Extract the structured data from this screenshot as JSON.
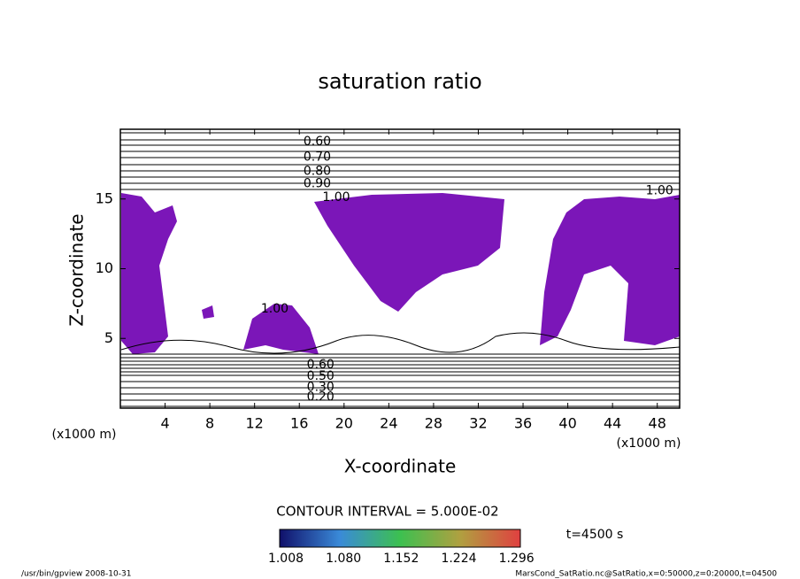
{
  "chart_data": {
    "type": "contour",
    "title": "saturation ratio",
    "xlabel": "X-coordinate",
    "ylabel": "Z-coordinate",
    "xunit": "(x1000 m)",
    "yunit": "(x1000 m)",
    "xlim": [
      0,
      50
    ],
    "ylim": [
      0,
      20
    ],
    "xticks": [
      4,
      8,
      12,
      16,
      20,
      24,
      28,
      32,
      36,
      40,
      44,
      48
    ],
    "yticks": [
      5,
      10,
      15
    ],
    "color": "#7b16b8",
    "contour_labels": [
      {
        "text": "0.60",
        "x": 17.6,
        "y": 19.1
      },
      {
        "text": "0.70",
        "x": 17.6,
        "y": 18.0
      },
      {
        "text": "0.80",
        "x": 17.6,
        "y": 17.0
      },
      {
        "text": "0.90",
        "x": 17.6,
        "y": 16.1
      },
      {
        "text": "1.00",
        "x": 19.3,
        "y": 15.1
      },
      {
        "text": "1.00",
        "x": 48.2,
        "y": 15.6
      },
      {
        "text": "1.00",
        "x": 13.8,
        "y": 7.1
      },
      {
        "text": "0.60",
        "x": 17.9,
        "y": 3.1
      },
      {
        "text": "0.50",
        "x": 17.9,
        "y": 2.3
      },
      {
        "text": "0.30",
        "x": 17.9,
        "y": 1.5
      },
      {
        "text": "0.20",
        "x": 17.9,
        "y": 0.8
      }
    ],
    "contour_interval": "CONTOUR INTERVAL = 5.000E-02",
    "colorbar_labels": [
      "1.008",
      "1.080",
      "1.152",
      "1.224",
      "1.296"
    ],
    "time": "t=4500 s",
    "footer_left": "/usr/bin/gpview   2008-10-31",
    "footer_right": "MarsCond_SatRatio.nc@SatRatio,x=0:50000,z=0:20000,t=04500"
  }
}
